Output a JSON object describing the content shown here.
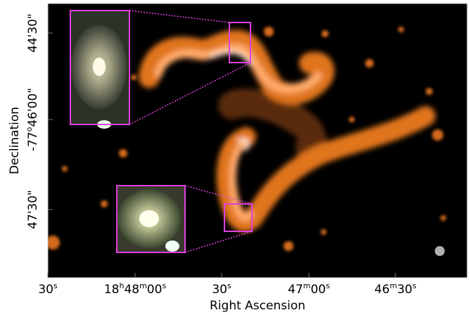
{
  "x_axis": {
    "label": "Right Ascension",
    "ticks": [
      [
        "30",
        "s"
      ],
      [
        "18",
        "h",
        "48",
        "m",
        "00",
        "s"
      ],
      [
        "30",
        "s"
      ],
      [
        "47",
        "m",
        "00",
        "s"
      ],
      [
        "46",
        "m",
        "30",
        "s"
      ]
    ]
  },
  "y_axis": {
    "label": "Declination",
    "ticks": [
      [
        "44'30\""
      ],
      [
        "-77",
        "o",
        "46'00\""
      ],
      [
        "47'30\""
      ]
    ]
  }
}
